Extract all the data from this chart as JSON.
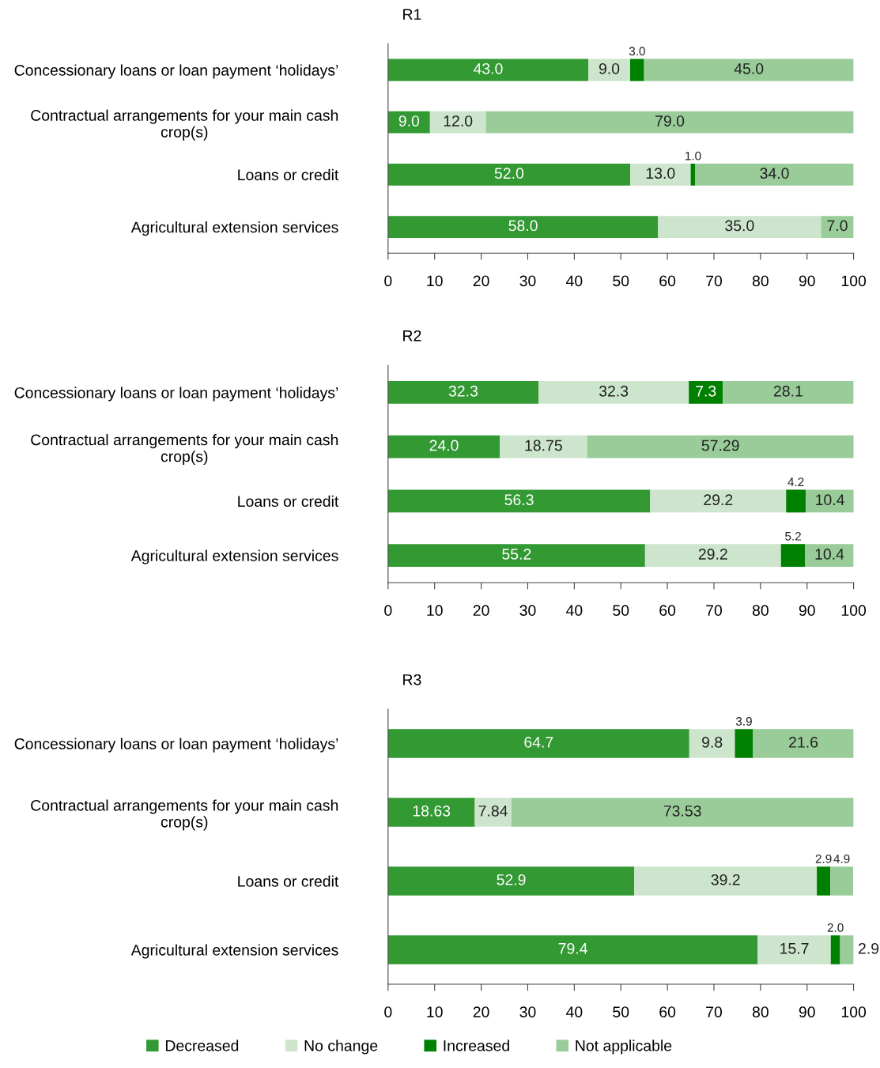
{
  "chart_data": [
    {
      "type": "bar",
      "title": "R1",
      "orientation": "horizontal",
      "stacked": true,
      "legend": "bottom",
      "grid": false,
      "categories": [
        "Concessionary loans or loan payment ‘holidays’",
        "Contractual arrangements for your main cash\ncrop(s)",
        "Loans or credit",
        "Agricultural extension services"
      ],
      "xlim": [
        0,
        100
      ],
      "xticks": [
        0,
        10,
        20,
        30,
        40,
        50,
        60,
        70,
        80,
        90,
        100
      ],
      "series": [
        {
          "name": "Decreased",
          "color": "#339933",
          "values": [
            43.0,
            9.0,
            52.0,
            58.0
          ],
          "value_labels": [
            "43.0",
            "9.0",
            "52.0",
            "58.0"
          ]
        },
        {
          "name": "No change",
          "color": "#cce5cc",
          "values": [
            9.0,
            12.0,
            13.0,
            35.0
          ],
          "value_labels": [
            "9.0",
            "12.0",
            "13.0",
            "35.0"
          ]
        },
        {
          "name": "Increased",
          "color": "#008000",
          "values": [
            3.0,
            0,
            1.0,
            0
          ],
          "value_labels": [
            "3.0",
            null,
            "1.0",
            null
          ]
        },
        {
          "name": "Not applicable",
          "color": "#99cc99",
          "values": [
            45.0,
            79.0,
            34.0,
            7.0
          ],
          "value_labels": [
            "45.0",
            "79.0",
            "34.0",
            "7.0"
          ]
        }
      ]
    },
    {
      "type": "bar",
      "title": "R2",
      "orientation": "horizontal",
      "stacked": true,
      "legend": false,
      "grid": false,
      "categories": [
        "Concessionary loans or loan payment ‘holidays’",
        "Contractual arrangements for your main cash\ncrop(s)",
        "Loans or credit",
        "Agricultural extension services"
      ],
      "xlim": [
        0,
        100
      ],
      "xticks": [
        0,
        10,
        20,
        30,
        40,
        50,
        60,
        70,
        80,
        90,
        100
      ],
      "series": [
        {
          "color": "#339933",
          "values": [
            32.3,
            24.0,
            56.3,
            55.2
          ],
          "value_labels": [
            "32.3",
            "24.0",
            "56.3",
            "55.2"
          ]
        },
        {
          "color": "#cce5cc",
          "values": [
            32.3,
            18.75,
            29.2,
            29.2
          ],
          "value_labels": [
            "32.3",
            "18.75",
            "29.2",
            "29.2"
          ]
        },
        {
          "color": "#008000",
          "values": [
            7.3,
            0,
            4.2,
            5.2
          ],
          "value_labels": [
            "7.3",
            null,
            "4.2",
            "5.2"
          ]
        },
        {
          "color": "#99cc99",
          "values": [
            28.1,
            57.29,
            10.4,
            10.4
          ],
          "value_labels": [
            "28.1",
            "57.29",
            "10.4",
            "10.4"
          ]
        }
      ]
    },
    {
      "type": "bar",
      "title": "R3",
      "orientation": "horizontal",
      "stacked": true,
      "legend": false,
      "grid": false,
      "categories": [
        "Concessionary loans or loan payment ‘holidays’",
        "Contractual arrangements for your main cash\ncrop(s)",
        "Loans or credit",
        "Agricultural extension services"
      ],
      "xlim": [
        0,
        100
      ],
      "xticks": [
        0,
        10,
        20,
        30,
        40,
        50,
        60,
        70,
        80,
        90,
        100
      ],
      "series": [
        {
          "color": "#339933",
          "values": [
            64.7,
            18.63,
            52.9,
            79.4
          ],
          "value_labels": [
            "64.7",
            "18.63",
            "52.9",
            "79.4"
          ]
        },
        {
          "color": "#cce5cc",
          "values": [
            9.8,
            7.84,
            39.2,
            15.7
          ],
          "value_labels": [
            "9.8",
            "7.84",
            "39.2",
            "15.7"
          ]
        },
        {
          "color": "#008000",
          "values": [
            3.9,
            0,
            2.9,
            2.0
          ],
          "value_labels": [
            "3.9",
            null,
            "2.9",
            "2.0"
          ]
        },
        {
          "color": "#99cc99",
          "values": [
            21.6,
            73.53,
            4.9,
            2.9
          ],
          "value_labels": [
            "21.6",
            "73.53",
            "4.9",
            "2.9"
          ]
        }
      ]
    }
  ]
}
